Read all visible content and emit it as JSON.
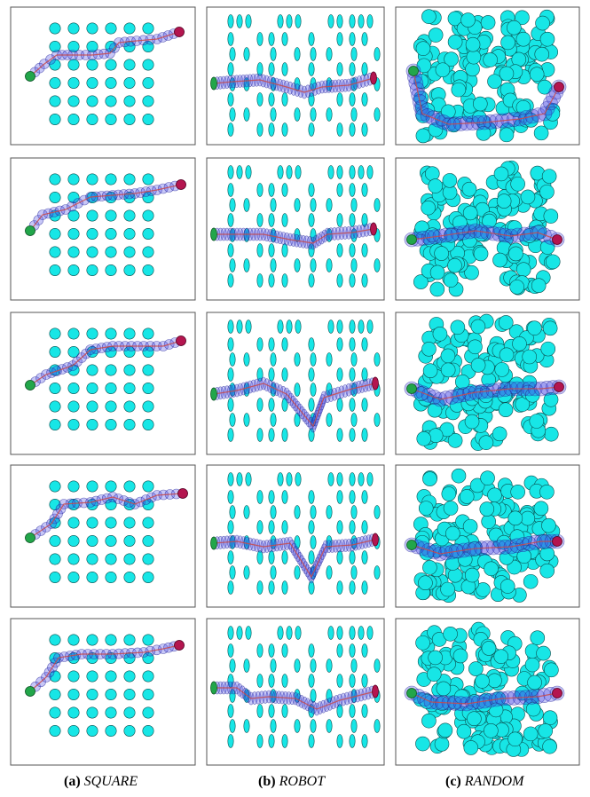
{
  "colors": {
    "obstacle": "#17e6e6",
    "obstacle_edge": "#0a5050",
    "trajectory": "#4646e6",
    "path": "#c84a4a",
    "start": "#22a64a",
    "goal": "#b4154f",
    "frame": "#555555"
  },
  "columns": [
    {
      "id": "square",
      "label": "(a)",
      "name": "SQUARE"
    },
    {
      "id": "robot",
      "label": "(b)",
      "name": "ROBOT"
    },
    {
      "id": "random",
      "label": "(c)",
      "name": "RANDOM"
    }
  ],
  "rows": 5
}
